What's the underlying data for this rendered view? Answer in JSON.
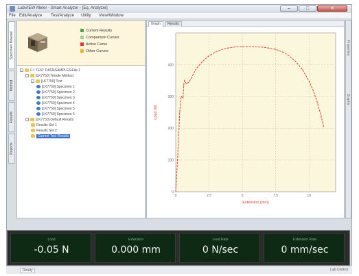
{
  "window": {
    "title": "LabVIEW Meter - Smart Analyzer - [Eq. Analyzer]",
    "min_label": "–",
    "max_label": "□",
    "close_label": "✕"
  },
  "menu": [
    "File",
    "Edit/Analyze",
    "Test/Analyze",
    "Utility",
    "View/Window"
  ],
  "side_tabs": [
    "Specimen Browser",
    "Method",
    "Results",
    "Reports"
  ],
  "legend": {
    "items": [
      {
        "label": "Current Results",
        "color": "#4aa84a",
        "icon": "green-dot-icon"
      },
      {
        "label": "Comparison Curves",
        "color": "#9fd08f",
        "icon": "light-green-dot-icon"
      },
      {
        "label": "Active Curve",
        "color": "#e03a2e",
        "icon": "red-dot-icon"
      },
      {
        "label": "Other Curves",
        "color": "#f2b01a",
        "icon": "orange-dot-icon"
      }
    ]
  },
  "tree": {
    "rows": [
      {
        "label": "C:\\ TEST DATA\\SAMPLES\\File 1",
        "level": 0,
        "expander": "-",
        "icon": "folder-icon",
        "selected": false
      },
      {
        "label": "[LK7750] Tensile Method",
        "level": 1,
        "expander": "-",
        "icon": "folder-icon",
        "selected": false
      },
      {
        "label": "[LK7750] Test",
        "level": 2,
        "expander": "-",
        "icon": "folder-icon",
        "selected": false
      },
      {
        "label": "[LK7750] Specimen 1",
        "level": 3,
        "expander": "",
        "icon": "specimen-icon",
        "selected": false
      },
      {
        "label": "[LK7750] Specimen 2",
        "level": 3,
        "expander": "",
        "icon": "specimen-icon",
        "selected": false
      },
      {
        "label": "[LK7750] Specimen 3",
        "level": 3,
        "expander": "",
        "icon": "specimen-icon",
        "selected": false
      },
      {
        "label": "[LK7750] Specimen 4",
        "level": 3,
        "expander": "",
        "icon": "specimen-icon",
        "selected": false
      },
      {
        "label": "[LK7750] Specimen 5",
        "level": 3,
        "expander": "",
        "icon": "specimen-icon",
        "selected": false
      },
      {
        "label": "[LK7750] Specimen 6",
        "level": 3,
        "expander": "",
        "icon": "specimen-icon",
        "selected": false
      },
      {
        "label": "[LK7750] Default Results",
        "level": 1,
        "expander": "-",
        "icon": "folder-icon",
        "selected": false
      },
      {
        "label": "Results Set 1",
        "level": 2,
        "expander": "",
        "icon": "folder-icon",
        "selected": false
      },
      {
        "label": "Results Set 2",
        "level": 2,
        "expander": "",
        "icon": "folder-icon",
        "selected": false
      },
      {
        "label": "Current Test Results",
        "level": 2,
        "expander": "",
        "icon": "folder-icon",
        "selected": true
      }
    ]
  },
  "chart_tabs": [
    {
      "label": "Graph",
      "active": true
    },
    {
      "label": "Results",
      "active": false
    }
  ],
  "right_strip_tabs": [
    "Properties",
    "Graphs"
  ],
  "chart_data": {
    "type": "line",
    "xlabel": "Extension (mm)",
    "ylabel": "Load (N)",
    "xlim": [
      0,
      12
    ],
    "ylim": [
      0,
      500
    ],
    "x_ticks": [
      "0",
      "2.5",
      "5",
      "7.5",
      "10"
    ],
    "y_ticks": [
      "0",
      "100",
      "200",
      "300",
      "400"
    ],
    "grid": true,
    "background": "#fbf7dc",
    "series": [
      {
        "color": "#e03a2e",
        "x": [
          0,
          0.15,
          0.3,
          0.4,
          0.55,
          0.6,
          0.65,
          0.8,
          1.0,
          1.2,
          1.5,
          2.0,
          2.5,
          3.0,
          3.5,
          4.0,
          4.5,
          5.0,
          5.5,
          6.0,
          6.5,
          7.0,
          7.5,
          8.0,
          8.5,
          9.0,
          9.5,
          10.0,
          10.3,
          10.6,
          10.9,
          11.1
        ],
        "y": [
          0,
          110,
          250,
          300,
          295,
          335,
          350,
          340,
          345,
          360,
          385,
          410,
          428,
          440,
          448,
          453,
          456,
          457,
          457,
          456,
          455,
          452,
          448,
          440,
          428,
          410,
          385,
          348,
          320,
          285,
          240,
          205
        ]
      }
    ]
  },
  "readouts": [
    {
      "label": "Load",
      "value": "-0.05 N"
    },
    {
      "label": "Extension",
      "value": "0.000 mm"
    },
    {
      "label": "Load Rate",
      "value": "0 N/sec"
    },
    {
      "label": "Extension Rate",
      "value": "0 mm/sec"
    }
  ],
  "status": {
    "left": "Ready",
    "right": "Lab Control"
  }
}
